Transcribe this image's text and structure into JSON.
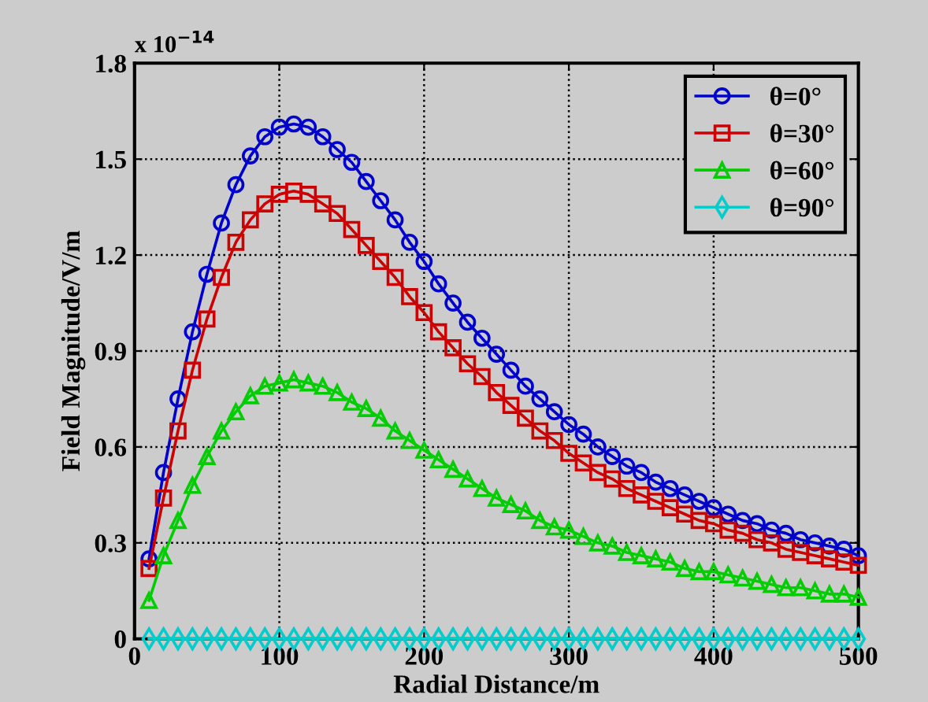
{
  "chart_data": {
    "type": "line",
    "xlabel": "Radial Distance/m",
    "ylabel": "Field Magnitude/V/m",
    "annotations": [
      "x 10$^{−14}$"
    ],
    "x": [
      10,
      20,
      30,
      40,
      50,
      60,
      70,
      80,
      90,
      100,
      110,
      120,
      130,
      140,
      150,
      160,
      170,
      180,
      190,
      200,
      210,
      220,
      230,
      240,
      250,
      260,
      270,
      280,
      290,
      300,
      310,
      320,
      330,
      340,
      350,
      360,
      370,
      380,
      390,
      400,
      410,
      420,
      430,
      440,
      450,
      460,
      470,
      480,
      490,
      500
    ],
    "series": [
      {
        "name": "θ=0°",
        "color": "#0000cc",
        "marker": "circle",
        "values": [
          0.25,
          0.52,
          0.75,
          0.96,
          1.14,
          1.3,
          1.42,
          1.51,
          1.57,
          1.6,
          1.61,
          1.6,
          1.57,
          1.53,
          1.49,
          1.43,
          1.37,
          1.31,
          1.24,
          1.18,
          1.11,
          1.05,
          0.99,
          0.94,
          0.89,
          0.84,
          0.79,
          0.75,
          0.71,
          0.67,
          0.64,
          0.6,
          0.57,
          0.54,
          0.52,
          0.49,
          0.47,
          0.45,
          0.43,
          0.41,
          0.39,
          0.37,
          0.36,
          0.34,
          0.33,
          0.31,
          0.3,
          0.29,
          0.28,
          0.26
        ]
      },
      {
        "name": "θ=30°",
        "color": "#cc0000",
        "marker": "square",
        "values": [
          0.22,
          0.44,
          0.65,
          0.84,
          1.0,
          1.13,
          1.24,
          1.31,
          1.36,
          1.39,
          1.4,
          1.39,
          1.36,
          1.33,
          1.28,
          1.23,
          1.18,
          1.13,
          1.07,
          1.02,
          0.96,
          0.91,
          0.86,
          0.82,
          0.77,
          0.73,
          0.69,
          0.65,
          0.62,
          0.58,
          0.55,
          0.52,
          0.5,
          0.47,
          0.45,
          0.43,
          0.41,
          0.39,
          0.37,
          0.36,
          0.34,
          0.33,
          0.31,
          0.3,
          0.28,
          0.27,
          0.26,
          0.25,
          0.24,
          0.23
        ]
      },
      {
        "name": "θ=60°",
        "color": "#00cc00",
        "marker": "triangle",
        "values": [
          0.12,
          0.26,
          0.37,
          0.48,
          0.57,
          0.65,
          0.71,
          0.76,
          0.79,
          0.8,
          0.81,
          0.8,
          0.79,
          0.77,
          0.74,
          0.72,
          0.69,
          0.65,
          0.62,
          0.59,
          0.56,
          0.53,
          0.5,
          0.47,
          0.44,
          0.42,
          0.4,
          0.37,
          0.35,
          0.34,
          0.32,
          0.3,
          0.29,
          0.27,
          0.26,
          0.25,
          0.24,
          0.22,
          0.21,
          0.21,
          0.2,
          0.19,
          0.18,
          0.17,
          0.16,
          0.16,
          0.15,
          0.14,
          0.14,
          0.13
        ]
      },
      {
        "name": "θ=90°",
        "color": "#00cccc",
        "marker": "diamond",
        "values": [
          0,
          0,
          0,
          0,
          0,
          0,
          0,
          0,
          0,
          0,
          0,
          0,
          0,
          0,
          0,
          0,
          0,
          0,
          0,
          0,
          0,
          0,
          0,
          0,
          0,
          0,
          0,
          0,
          0,
          0,
          0,
          0,
          0,
          0,
          0,
          0,
          0,
          0,
          0,
          0,
          0,
          0,
          0,
          0,
          0,
          0,
          0,
          0,
          0,
          0
        ]
      }
    ],
    "xlim": [
      0,
      500
    ],
    "xticks": [
      0,
      100,
      200,
      300,
      400,
      500
    ],
    "ylim": [
      0,
      1.8
    ],
    "yticks": [
      0,
      0.3,
      0.6,
      0.9,
      1.2,
      1.5,
      1.8
    ],
    "grid": true,
    "legend": "top right",
    "line_style": "solid"
  }
}
